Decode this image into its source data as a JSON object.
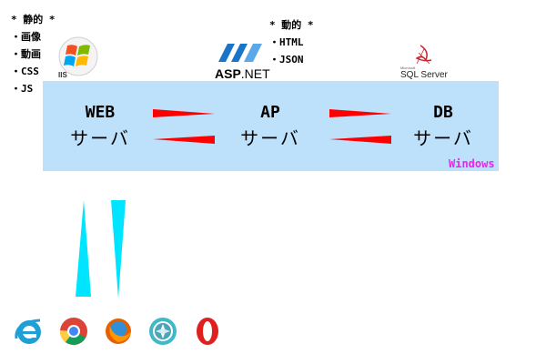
{
  "static_note": {
    "title": "* 静的 *",
    "items": [
      "・画像",
      "・動画",
      "・CSS",
      "・JS"
    ]
  },
  "dynamic_note": {
    "title": "* 動的 *",
    "items": [
      "・HTML",
      "・JSON"
    ]
  },
  "logos": {
    "iis": "IIS",
    "aspnet_bold": "ASP",
    "aspnet_rest": ".NET",
    "sql_small": "Microsoft",
    "sql": "SQL Server"
  },
  "servers": [
    {
      "name": "WEB",
      "role": "サーバ"
    },
    {
      "name": "AP",
      "role": "サーバ"
    },
    {
      "name": "DB",
      "role": "サーバ"
    }
  ],
  "platform_label": "Windows",
  "colors": {
    "band": "#bde0fb",
    "arrow_red": "#ff0000",
    "arrow_cyan": "#00e5ff",
    "platform": "#ee22ee"
  },
  "browsers": [
    "internet-explorer-icon",
    "chrome-icon",
    "firefox-icon",
    "safari-icon",
    "opera-icon"
  ]
}
